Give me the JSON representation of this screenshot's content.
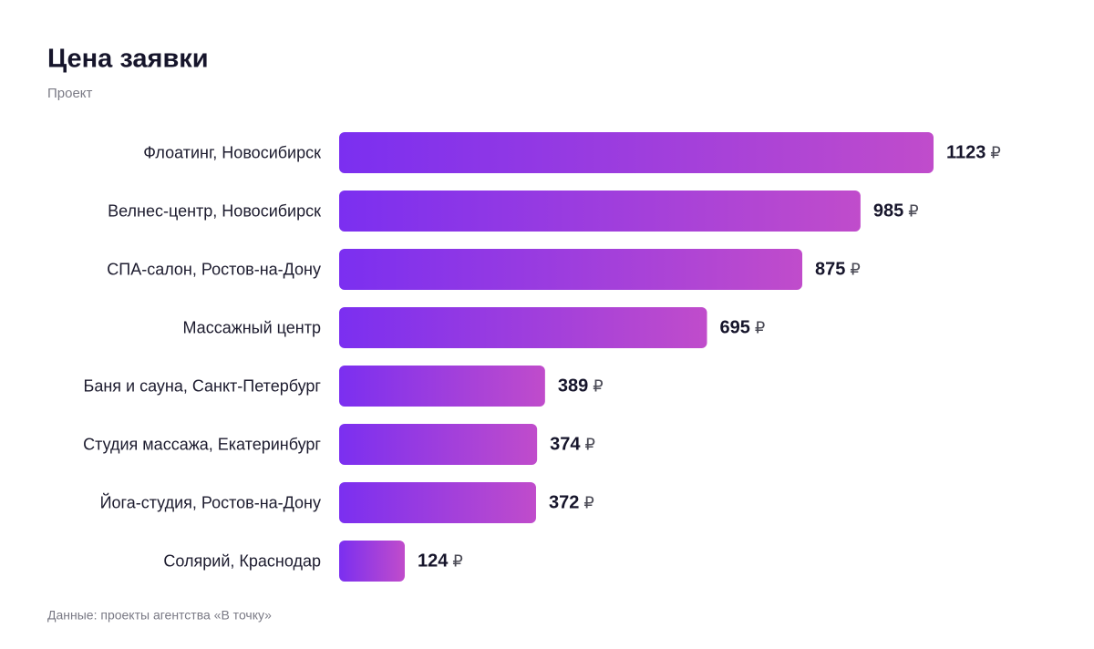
{
  "chart_data": {
    "type": "bar",
    "orientation": "horizontal",
    "title": "Цена заявки",
    "subtitle": "Проект",
    "categories": [
      "Флоатинг, Новосибирск",
      "Велнес-центр, Новосибирск",
      "СПА-салон, Ростов-на-Дону",
      "Массажный центр",
      "Баня и сауна, Санкт-Петербург",
      "Студия массажа, Екатеринбург",
      "Йога-студия, Ростов-на-Дону",
      "Солярий, Краснодар"
    ],
    "values": [
      1123,
      985,
      875,
      695,
      389,
      374,
      372,
      124
    ],
    "unit": "₽",
    "gradient": [
      "#7b2ff0",
      "#c04ccb"
    ],
    "source": "Данные: проекты агентства «В точку»"
  }
}
